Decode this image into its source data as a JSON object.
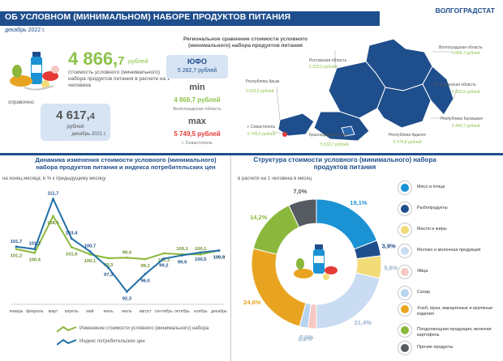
{
  "header": {
    "title": "ОБ УСЛОВНОМ (МИНИМАЛЬНОМ) НАБОРЕ ПРОДУКТОВ ПИТАНИЯ",
    "date": "декабрь 2022 г.",
    "org": "ВОЛГОГРАДСТАТ"
  },
  "summary": {
    "value_main": "4 866,",
    "value_decimal": "7",
    "unit": "рублей",
    "description": "стоимость условного (минимального) набора продуктов питания в расчете на 1 человека",
    "reference_label": "справочно:",
    "reference_value_main": "4 617,",
    "reference_value_decimal": "4",
    "reference_unit": "рублей",
    "reference_date": "декабрь 2021 г."
  },
  "regional": {
    "heading": "Региональное сравнение стоимости условного (минимального) набора продуктов питания",
    "yufo_label": "ЮФО",
    "yufo_value": "5 282,7 рублей",
    "min_label": "min",
    "min_value": "4 866,7 рублей",
    "min_region": "Волгоградская область",
    "max_label": "max",
    "max_value": "5 749,5 рублей",
    "max_region": "г. Севастополь"
  },
  "map": {
    "regions": [
      {
        "name": "Волгоградская область",
        "value": "4 866,7 рублей"
      },
      {
        "name": "Ростовская область",
        "value": "5 222,5 рублей"
      },
      {
        "name": "Республика Крым",
        "value": "5 623,5 рублей"
      },
      {
        "name": "Астраханская область",
        "value": "5 203,8 рублей"
      },
      {
        "name": "Республика Калмыкия",
        "value": "5 466,7 рублей"
      },
      {
        "name": "г. Севастополь",
        "value": "5 749,5 рублей"
      },
      {
        "name": "Краснодарский край",
        "value": "5 633,7 рублей"
      },
      {
        "name": "Республика Адыгея",
        "value": "5 074,8 рублей"
      }
    ]
  },
  "dynamics": {
    "title": "Динамика изменения стоимости  условного (минимального) набора продуктов питания  и индекса потребительских цен",
    "subtitle": "на конец месяца; в % к предыдущему месяцу",
    "legend_set": "Изменение стоимости условного (минимального) набора",
    "legend_cpi": "Индекс потребительских цен"
  },
  "structure": {
    "title": "Структура стоимости условного (минимального) набора продуктов питания",
    "subtitle": "в расчете на 1 человека в месяц",
    "categories": [
      {
        "label": "Мясо и птица",
        "color": "#1b92d4",
        "icon": "meat-icon"
      },
      {
        "label": "Рыбопродукты",
        "color": "#1f4e8c",
        "icon": "fish-icon"
      },
      {
        "label": "Масло и жиры",
        "color": "#f2dc7a",
        "icon": "oil-icon"
      },
      {
        "label": "Молоко и молочная продукция",
        "color": "#c9dcf2",
        "icon": "milk-icon"
      },
      {
        "label": "Яйца",
        "color": "#f6c8c4",
        "icon": "egg-icon"
      },
      {
        "label": "Сахар",
        "color": "#b7d3ef",
        "icon": "sugar-icon"
      },
      {
        "label": "Хлеб, мука, макаронные и крупяные изделия",
        "color": "#e8a421",
        "icon": "bread-icon"
      },
      {
        "label": "Плодоовощная продукция, включая картофель",
        "color": "#8bb83c",
        "icon": "vegetables-icon"
      },
      {
        "label": "Прочие продукты",
        "color": "#555b60",
        "icon": "other-products-icon"
      }
    ]
  },
  "chart_data": [
    {
      "type": "line",
      "title": "Динамика изменения стоимости  условного (минимального) набора продуктов питания  и индекса потребительских цен",
      "x": [
        "январь",
        "февраль",
        "март",
        "апрель",
        "май",
        "июнь",
        "июль",
        "август",
        "сентябрь",
        "октябрь",
        "ноябрь",
        "декабрь"
      ],
      "series": [
        {
          "name": "Изменение стоимости условного (минимального) набора",
          "color": "#8bb83c",
          "values": [
            101.2,
            100.4,
            108.1,
            101.6,
            100.1,
            99.3,
            99.4,
            99.1,
            100.3,
            100.1,
            100.1,
            100.9
          ]
        },
        {
          "name": "Индекс потребительских цен",
          "color": "#1f6fa8",
          "values": [
            101.7,
            101.2,
            111.7,
            103.4,
            100.7,
            97.3,
            92.3,
            96.0,
            99.2,
            99.9,
            100.5,
            100.9
          ]
        }
      ],
      "ylim": [
        90,
        114
      ]
    },
    {
      "type": "pie",
      "title": "Структура стоимости условного (минимального) набора продуктов питания",
      "categories": [
        "Мясо и птица",
        "Рыбопродукты",
        "Масло и жиры",
        "Молоко и молочная продукция",
        "Яйца",
        "Сахар",
        "Хлеб, мука, макаронные и крупяные изделия",
        "Плодоовощная продукция, включая картофель",
        "Прочие продукты"
      ],
      "values": [
        19.1,
        3.9,
        5.6,
        21.4,
        2.1,
        2.1,
        24.6,
        14.2,
        7.0
      ],
      "labels": [
        "19,1%",
        "3,9%",
        "5,6%",
        "21,4%",
        "2,1%",
        "2,1%",
        "24,6%",
        "14,2%",
        "7,0%"
      ],
      "colors": [
        "#1b92d4",
        "#1f4e8c",
        "#f2dc7a",
        "#c9dcf2",
        "#f6c8c4",
        "#b7d3ef",
        "#e8a421",
        "#8bb83c",
        "#555b60"
      ]
    }
  ]
}
